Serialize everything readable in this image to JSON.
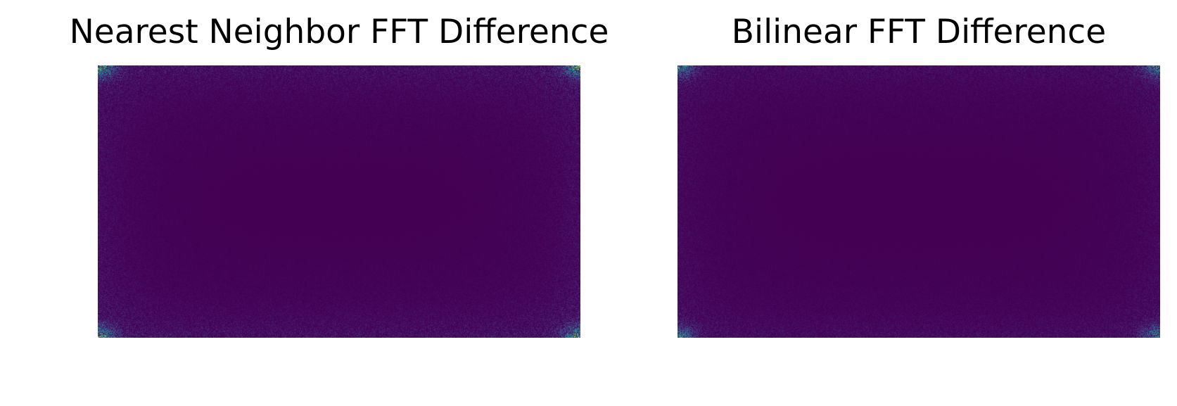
{
  "figure": {
    "panels": [
      {
        "title": "Nearest Neighbor FFT Difference"
      },
      {
        "title": "Bilinear FFT Difference"
      }
    ]
  },
  "chart_data": [
    {
      "type": "heatmap",
      "title": "Nearest Neighbor FFT Difference",
      "xlabel": "",
      "ylabel": "",
      "axes_visible": false,
      "colormap": "viridis",
      "colors": {
        "low": "#440154",
        "mid": "#31688e",
        "high": "#b5de2b"
      },
      "description_values": {
        "background_level": 0.0,
        "edge_level": 0.25,
        "corner_peak_level": 0.85
      }
    },
    {
      "type": "heatmap",
      "title": "Bilinear FFT Difference",
      "xlabel": "",
      "ylabel": "",
      "axes_visible": false,
      "colormap": "viridis",
      "colors": {
        "low": "#440154",
        "mid": "#31688e",
        "high": "#b5de2b"
      },
      "description_values": {
        "background_level": 0.0,
        "edge_level": 0.18,
        "corner_peak_level": 0.7
      }
    }
  ]
}
